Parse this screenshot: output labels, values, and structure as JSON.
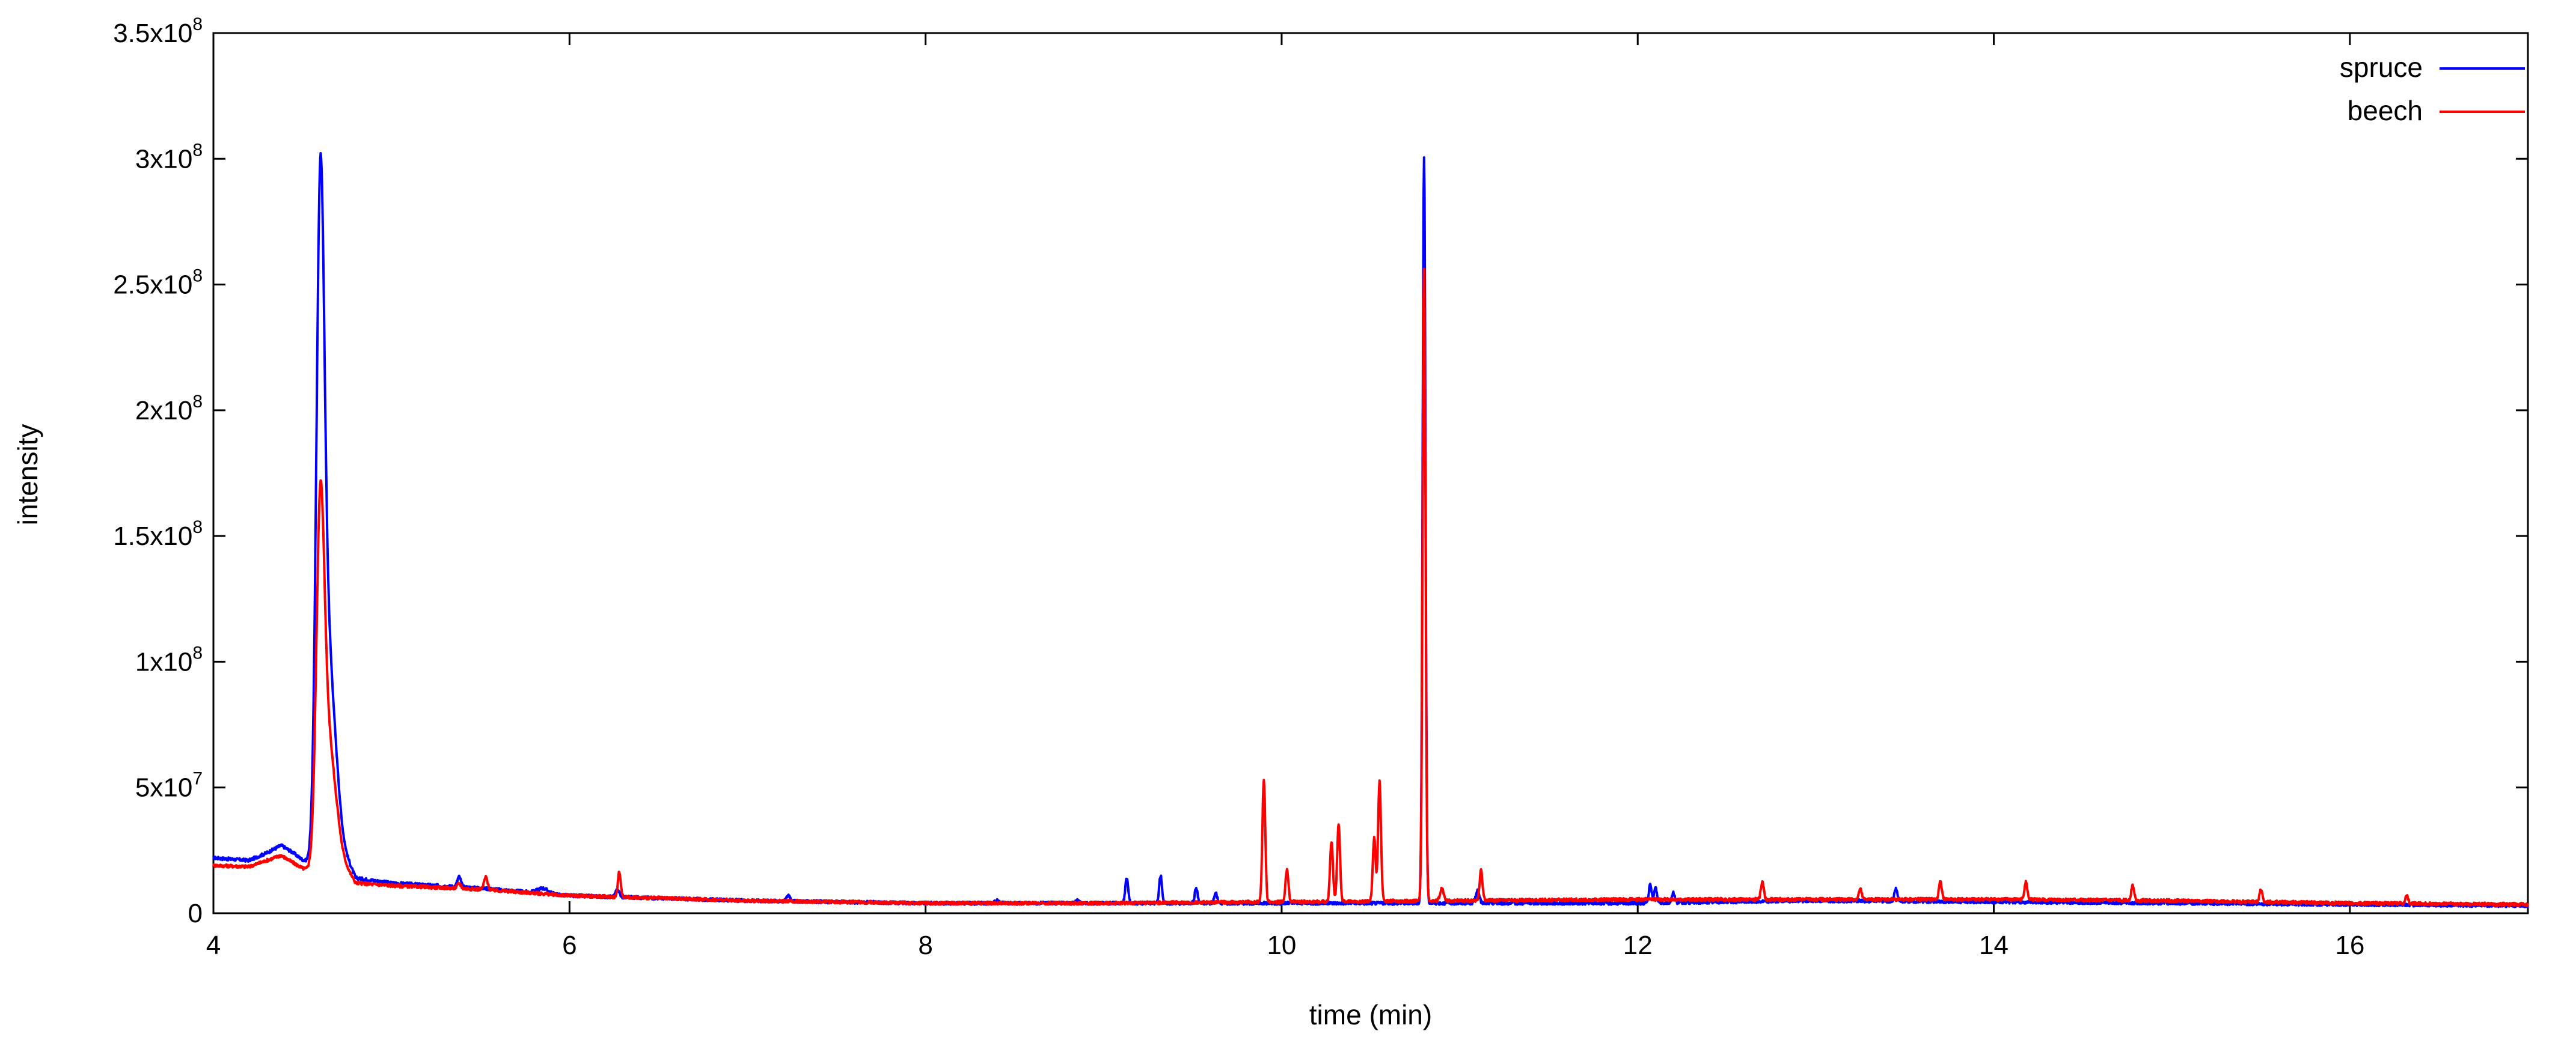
{
  "chart_data": {
    "type": "line",
    "title": "",
    "xlabel": "time (min)",
    "ylabel": "intensity",
    "xlim": [
      4,
      17
    ],
    "ylim": [
      0,
      350000000
    ],
    "x_ticks": [
      4,
      6,
      8,
      10,
      12,
      14,
      16
    ],
    "x_tick_labels": [
      "4",
      "6",
      "8",
      "10",
      "12",
      "14",
      "16"
    ],
    "y_ticks": [
      0,
      50000000,
      100000000,
      150000000,
      200000000,
      250000000,
      300000000,
      350000000
    ],
    "y_tick_labels": [
      {
        "mant": "0",
        "exp": ""
      },
      {
        "mant": "5x10",
        "exp": "7"
      },
      {
        "mant": "1x10",
        "exp": "8"
      },
      {
        "mant": "1.5x10",
        "exp": "8"
      },
      {
        "mant": "2x10",
        "exp": "8"
      },
      {
        "mant": "2.5x10",
        "exp": "8"
      },
      {
        "mant": "3x10",
        "exp": "8"
      },
      {
        "mant": "3.5x10",
        "exp": "8"
      }
    ],
    "grid": false,
    "legend_position": "top-right",
    "series": [
      {
        "name": "spruce",
        "color": "#0000ff",
        "baseline": [
          [
            4.0,
            22000000
          ],
          [
            4.2,
            21000000
          ],
          [
            4.3,
            24000000
          ],
          [
            4.38,
            27000000
          ],
          [
            4.45,
            24000000
          ],
          [
            4.52,
            20000000
          ],
          [
            4.56,
            18000000
          ],
          [
            4.7,
            30000000
          ],
          [
            4.8,
            14000000
          ],
          [
            5.0,
            12000000
          ],
          [
            5.5,
            10000000
          ],
          [
            6.0,
            7000000
          ],
          [
            7.0,
            5000000
          ],
          [
            8.0,
            4000000
          ],
          [
            9.0,
            4000000
          ],
          [
            10.0,
            4000000
          ],
          [
            11.0,
            4000000
          ],
          [
            12.0,
            4000000
          ],
          [
            13.0,
            5000000
          ],
          [
            14.0,
            4500000
          ],
          [
            15.0,
            4000000
          ],
          [
            16.0,
            3500000
          ],
          [
            17.0,
            3000000
          ]
        ],
        "peaks": [
          [
            4.6,
            230000000,
            0.022
          ],
          [
            4.64,
            80000000,
            0.04
          ],
          [
            5.38,
            4000000,
            0.01
          ],
          [
            5.85,
            2000000,
            0.03
          ],
          [
            6.27,
            3000000,
            0.01
          ],
          [
            7.23,
            2500000,
            0.01
          ],
          [
            8.4,
            1000000,
            0.01
          ],
          [
            8.85,
            1000000,
            0.01
          ],
          [
            9.13,
            10000000,
            0.008
          ],
          [
            9.32,
            11000000,
            0.008
          ],
          [
            9.52,
            6000000,
            0.008
          ],
          [
            9.63,
            4000000,
            0.008
          ],
          [
            10.8,
            297000000,
            0.008
          ],
          [
            11.1,
            5000000,
            0.01
          ],
          [
            12.07,
            7000000,
            0.008
          ],
          [
            12.1,
            6000000,
            0.008
          ],
          [
            12.2,
            4000000,
            0.008
          ],
          [
            13.45,
            5000000,
            0.008
          ]
        ]
      },
      {
        "name": "beech",
        "color": "#ff0000",
        "baseline": [
          [
            4.0,
            19000000
          ],
          [
            4.2,
            18500000
          ],
          [
            4.3,
            21000000
          ],
          [
            4.38,
            23000000
          ],
          [
            4.45,
            20000000
          ],
          [
            4.52,
            17000000
          ],
          [
            4.56,
            16000000
          ],
          [
            4.7,
            24000000
          ],
          [
            4.8,
            12000000
          ],
          [
            5.0,
            11000000
          ],
          [
            5.5,
            9500000
          ],
          [
            6.0,
            7000000
          ],
          [
            7.0,
            5000000
          ],
          [
            8.0,
            4000000
          ],
          [
            9.0,
            4000000
          ],
          [
            10.0,
            4500000
          ],
          [
            11.0,
            5000000
          ],
          [
            12.0,
            5500000
          ],
          [
            13.0,
            5500000
          ],
          [
            14.0,
            5500000
          ],
          [
            15.0,
            5000000
          ],
          [
            16.0,
            4000000
          ],
          [
            17.0,
            3500000
          ]
        ],
        "peaks": [
          [
            4.6,
            122000000,
            0.022
          ],
          [
            4.64,
            50000000,
            0.04
          ],
          [
            5.38,
            2000000,
            0.01
          ],
          [
            5.53,
            5000000,
            0.01
          ],
          [
            6.28,
            10000000,
            0.008
          ],
          [
            9.9,
            49000000,
            0.008
          ],
          [
            10.03,
            13000000,
            0.008
          ],
          [
            10.28,
            24000000,
            0.008
          ],
          [
            10.32,
            31000000,
            0.008
          ],
          [
            10.52,
            25000000,
            0.008
          ],
          [
            10.55,
            48000000,
            0.008
          ],
          [
            10.8,
            251000000,
            0.008
          ],
          [
            10.9,
            5000000,
            0.01
          ],
          [
            11.12,
            12000000,
            0.008
          ],
          [
            12.7,
            7000000,
            0.008
          ],
          [
            13.25,
            4000000,
            0.008
          ],
          [
            13.7,
            7000000,
            0.008
          ],
          [
            14.18,
            7000000,
            0.008
          ],
          [
            14.78,
            6000000,
            0.008
          ],
          [
            15.5,
            5000000,
            0.008
          ],
          [
            16.32,
            3000000,
            0.008
          ]
        ]
      }
    ]
  }
}
